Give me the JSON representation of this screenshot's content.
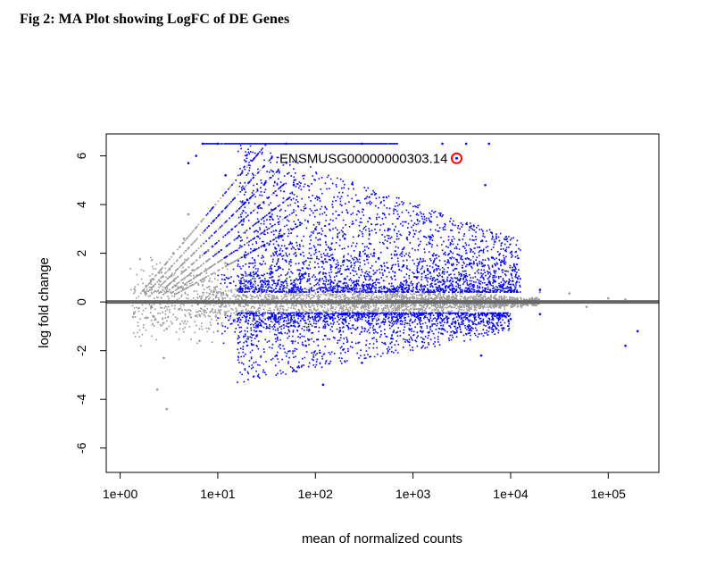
{
  "figure": {
    "caption": "Fig 2: MA Plot showing LogFC of DE Genes"
  },
  "chart_data": {
    "type": "scatter",
    "title": "",
    "xlabel": "mean of normalized counts",
    "ylabel": "log fold change",
    "x_scale": "log10",
    "xlim": [
      0.72,
      330000
    ],
    "ylim": [
      -7,
      6.9
    ],
    "x_ticks": [
      {
        "value": 1,
        "label": "1e+00"
      },
      {
        "value": 10,
        "label": "1e+01"
      },
      {
        "value": 100,
        "label": "1e+02"
      },
      {
        "value": 1000,
        "label": "1e+03"
      },
      {
        "value": 10000,
        "label": "1e+04"
      },
      {
        "value": 100000,
        "label": "1e+05"
      }
    ],
    "y_ticks": [
      {
        "value": -6,
        "label": "-6"
      },
      {
        "value": -4,
        "label": "-4"
      },
      {
        "value": -2,
        "label": "-2"
      },
      {
        "value": 0,
        "label": "0"
      },
      {
        "value": 2,
        "label": "2"
      },
      {
        "value": 4,
        "label": "4"
      },
      {
        "value": 6,
        "label": "6"
      }
    ],
    "grid": false,
    "reference_line": {
      "y": 0,
      "color": "#666666"
    },
    "series": [
      {
        "color": "#999999",
        "marker": "dot",
        "points": [
          [
            1.8,
            0.4
          ],
          [
            2.2,
            -0.6
          ],
          [
            2.5,
            1.2
          ],
          [
            3.0,
            -1.1
          ],
          [
            3.5,
            2.0
          ],
          [
            4.0,
            -0.3
          ],
          [
            4.5,
            2.6
          ],
          [
            5.0,
            3.6
          ],
          [
            5.5,
            1.3
          ],
          [
            2.8,
            -2.3
          ],
          [
            3.0,
            -4.4
          ],
          [
            2.4,
            -3.6
          ],
          [
            6.5,
            -1.6
          ],
          [
            8.0,
            2.1
          ],
          [
            10,
            -1.2
          ],
          [
            12,
            1.6
          ],
          [
            15,
            -0.8
          ],
          [
            20,
            1.1
          ],
          [
            30,
            -0.5
          ],
          [
            50,
            0.6
          ],
          [
            80,
            -0.4
          ],
          [
            150,
            0.3
          ],
          [
            300,
            -0.2
          ],
          [
            800,
            0.2
          ],
          [
            2000,
            -0.2
          ],
          [
            5000,
            0.3
          ],
          [
            20000,
            0.4
          ],
          [
            40000,
            0.35
          ],
          [
            60000,
            -0.2
          ],
          [
            100000,
            0.15
          ],
          [
            150000,
            0.1
          ]
        ]
      },
      {
        "color": "#0000ff",
        "marker": "dot",
        "points": [
          [
            7,
            6.5
          ],
          [
            10,
            6.5
          ],
          [
            50,
            6.5
          ],
          [
            300,
            6.5
          ],
          [
            2000,
            6.5
          ],
          [
            3500,
            6.5
          ],
          [
            6000,
            6.5
          ],
          [
            5,
            5.7
          ],
          [
            6,
            6.0
          ],
          [
            12,
            5.2
          ],
          [
            20,
            4.2
          ],
          [
            35,
            3.5
          ],
          [
            60,
            4.8
          ],
          [
            100,
            3.0
          ],
          [
            200,
            2.6
          ],
          [
            400,
            2.0
          ],
          [
            800,
            1.5
          ],
          [
            1500,
            1.2
          ],
          [
            3000,
            0.9
          ],
          [
            6000,
            0.8
          ],
          [
            10000,
            0.6
          ],
          [
            20000,
            0.5
          ],
          [
            5500,
            4.8
          ],
          [
            30,
            2.3
          ],
          [
            150,
            1.8
          ],
          [
            25,
            -1.4
          ],
          [
            40,
            -2.2
          ],
          [
            80,
            -1.8
          ],
          [
            120,
            -3.4
          ],
          [
            300,
            -2.5
          ],
          [
            600,
            -1.5
          ],
          [
            1200,
            -1.2
          ],
          [
            2500,
            -0.9
          ],
          [
            5000,
            -0.8
          ],
          [
            10000,
            -0.7
          ],
          [
            20000,
            -0.5
          ],
          [
            5000,
            -2.2
          ],
          [
            200000,
            -1.2
          ],
          [
            150000,
            -1.8
          ],
          [
            60,
            -2.8
          ]
        ]
      }
    ],
    "annotation": {
      "label": "ENSMUSG00000000303.14",
      "point": [
        2800,
        5.9
      ],
      "marker_color": "#ff0000"
    }
  }
}
